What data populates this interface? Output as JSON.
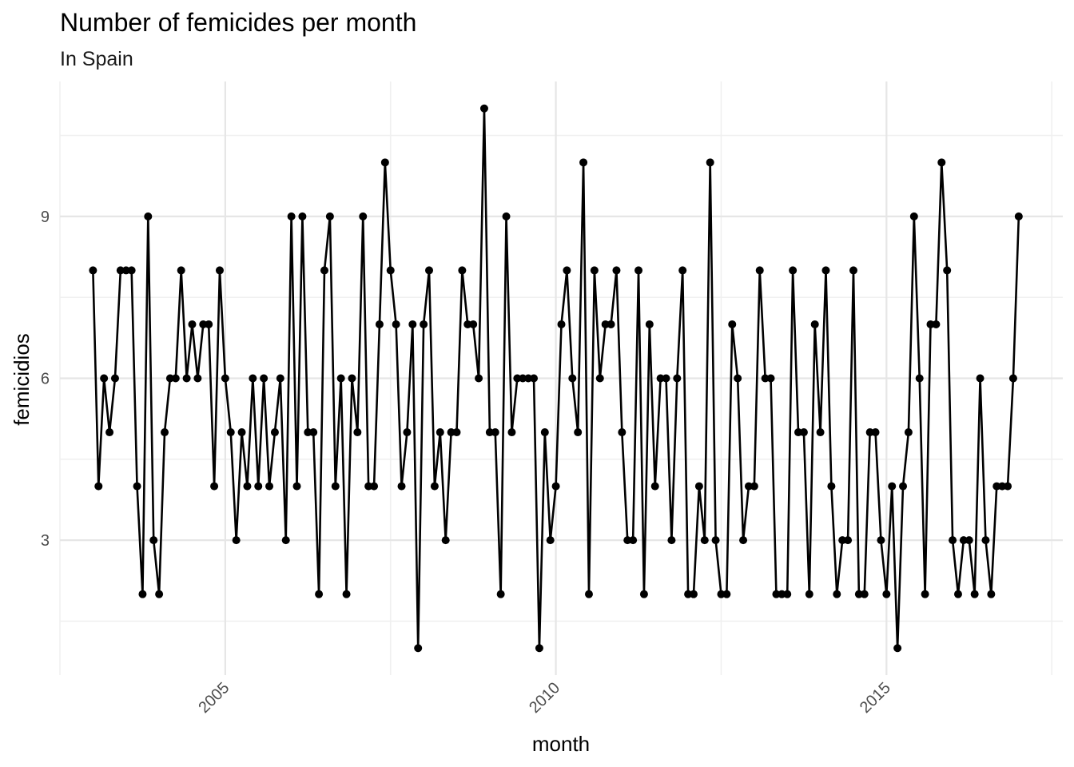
{
  "chart_data": {
    "type": "line",
    "title": "Number of femicides per month",
    "subtitle": "In Spain",
    "xlabel": "month",
    "ylabel": "femicidios",
    "x_start": "2003-01",
    "x_interval": "month",
    "xlim": [
      "2002-07",
      "2017-09"
    ],
    "ylim": [
      0.5,
      11.5
    ],
    "x_ticks": [
      {
        "date": "2005-01",
        "label": "2005"
      },
      {
        "date": "2010-01",
        "label": "2010"
      },
      {
        "date": "2015-01",
        "label": "2015"
      }
    ],
    "x_minor_ticks": [
      "2002-07",
      "2007-07",
      "2012-07",
      "2017-07"
    ],
    "y_ticks": [
      3,
      6,
      9
    ],
    "y_minor_ticks": [
      1.5,
      4.5,
      7.5,
      10.5
    ],
    "grid": true,
    "values": [
      8,
      4,
      6,
      5,
      6,
      8,
      8,
      8,
      4,
      2,
      9,
      3,
      2,
      5,
      6,
      6,
      8,
      6,
      7,
      6,
      7,
      7,
      4,
      8,
      6,
      5,
      3,
      5,
      4,
      6,
      4,
      6,
      4,
      5,
      6,
      3,
      9,
      4,
      9,
      5,
      5,
      2,
      8,
      9,
      4,
      6,
      2,
      6,
      5,
      9,
      4,
      4,
      7,
      10,
      8,
      7,
      4,
      5,
      7,
      1,
      7,
      8,
      4,
      5,
      3,
      5,
      5,
      8,
      7,
      7,
      6,
      11,
      5,
      5,
      2,
      9,
      5,
      6,
      6,
      6,
      6,
      1,
      5,
      3,
      4,
      7,
      8,
      6,
      5,
      10,
      2,
      8,
      6,
      7,
      7,
      8,
      5,
      3,
      3,
      8,
      2,
      7,
      4,
      6,
      6,
      3,
      6,
      8,
      2,
      2,
      4,
      3,
      10,
      3,
      2,
      2,
      7,
      6,
      3,
      4,
      4,
      8,
      6,
      6,
      2,
      2,
      2,
      8,
      5,
      5,
      2,
      7,
      5,
      8,
      4,
      2,
      3,
      3,
      8,
      2,
      2,
      5,
      5,
      3,
      2,
      4,
      1,
      4,
      5,
      9,
      6,
      2,
      7,
      7,
      10,
      8,
      3,
      2,
      3,
      3,
      2,
      6,
      3,
      2,
      4,
      4,
      4,
      6,
      9
    ]
  }
}
